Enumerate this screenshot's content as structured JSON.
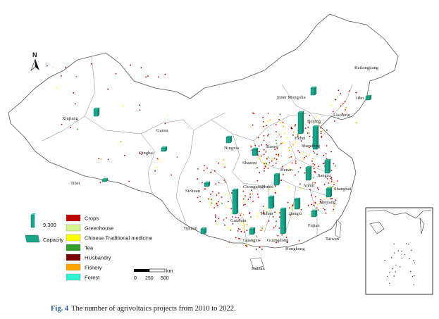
{
  "north_label": "N",
  "provinces": [
    "Heilongjiang",
    "Inner Mongolia",
    "Jilin",
    "Xinjiang",
    "Liaoning",
    "Beijing",
    "Gansu",
    "Ningxia",
    "Hebei",
    "Shandong",
    "Qinghai",
    "Shanxi",
    "Shaanxi",
    "Henan",
    "Jiangsu",
    "Tibet",
    "Sichuan",
    "Chongqing",
    "Hubei",
    "Anhui",
    "Shanghai",
    "Zhejiang",
    "Hunan",
    "Jiangxi",
    "Yunnan",
    "Guizhou",
    "Fujian",
    "Guangxi",
    "Taiwan",
    "Guangdong",
    "Hongkong",
    "Hainan"
  ],
  "legend": {
    "bar_value": "9,300",
    "bar_caption": "Capacity",
    "categories": [
      {
        "label": "Crops",
        "color": "#c00000"
      },
      {
        "label": "Greenhouse",
        "color": "#d6f58e"
      },
      {
        "label": "Chinese Traditional medicine",
        "color": "#ffff00"
      },
      {
        "label": "Tea",
        "color": "#33a02c"
      },
      {
        "label": "HUsbandry",
        "color": "#7a0000"
      },
      {
        "label": "Fishery",
        "color": "#ffa500"
      },
      {
        "label": "Forest",
        "color": "#2ff5d0"
      }
    ]
  },
  "scale": {
    "unit": "km",
    "ticks": [
      "0",
      "250",
      "500"
    ]
  },
  "capacity_bar_color": "#1aa58a",
  "caption": {
    "label": "Fig. 4",
    "text": "The number of agrivoltaics projects from 2010 to 2022."
  }
}
